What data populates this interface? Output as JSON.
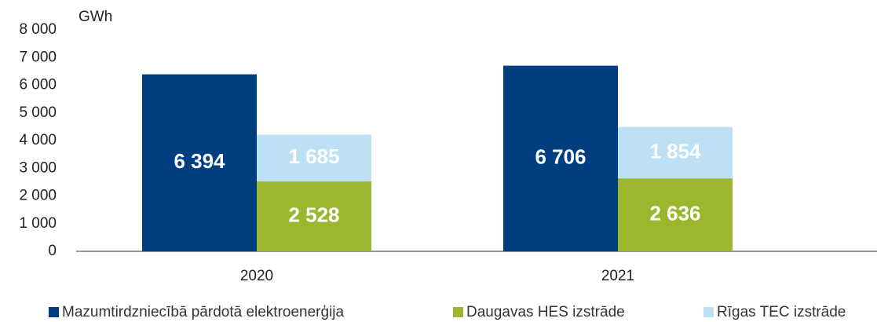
{
  "chart_data": {
    "type": "bar",
    "unit_label": "GWh",
    "categories": [
      "2020",
      "2021"
    ],
    "series": [
      {
        "name": "Mazumtirdzniecībā pārdotā elektroenerģija",
        "color": "#003f7f",
        "values": [
          6394,
          6706
        ],
        "value_labels": [
          "6 394",
          "6 706"
        ]
      },
      {
        "name": "Daugavas HES izstrāde",
        "color": "#9cb72e",
        "values": [
          2528,
          2636
        ],
        "value_labels": [
          "2 528",
          "2 636"
        ]
      },
      {
        "name": "Rīgas TEC izstrāde",
        "color": "#bde0f4",
        "values": [
          1685,
          1854
        ],
        "value_labels": [
          "1 685",
          "1 854"
        ]
      }
    ],
    "stacks": [
      [
        0
      ],
      [
        1,
        2
      ]
    ],
    "ylim": [
      0,
      8000
    ],
    "yticks": [
      0,
      {
        "value": 1000,
        "label": "1 000"
      },
      {
        "value": 2000,
        "label": "2 000"
      },
      {
        "value": 3000,
        "label": "3 000"
      },
      {
        "value": 4000,
        "label": "4 000"
      },
      {
        "value": 5000,
        "label": "5 000"
      },
      {
        "value": 6000,
        "label": "6 000"
      },
      {
        "value": 7000,
        "label": "7 000"
      },
      {
        "value": 8000,
        "label": "8 000"
      }
    ],
    "grid": false,
    "legend": "bottom"
  }
}
